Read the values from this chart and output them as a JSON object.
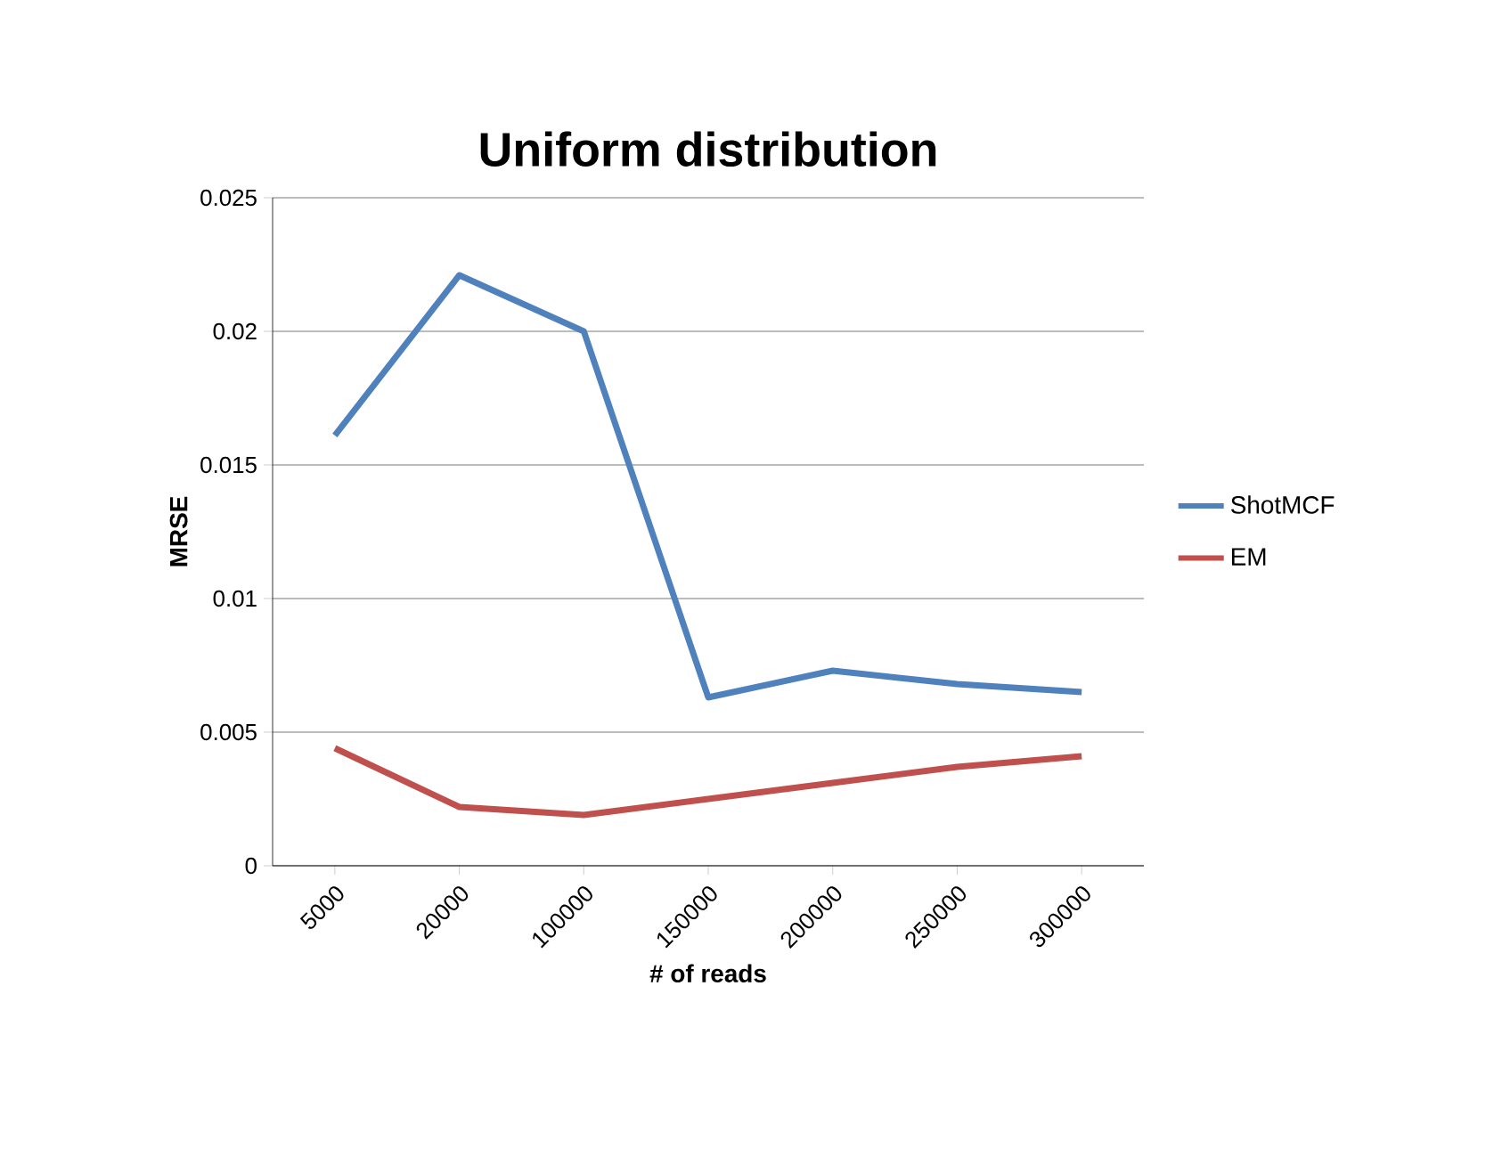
{
  "chart_data": {
    "type": "line",
    "title": "Uniform distribution",
    "xlabel": "# of reads",
    "ylabel": "MRSE",
    "categories": [
      "5000",
      "20000",
      "100000",
      "150000",
      "200000",
      "250000",
      "300000"
    ],
    "series": [
      {
        "name": "ShotMCF",
        "color": "#4f81bd",
        "values": [
          0.0161,
          0.0221,
          0.02,
          0.0063,
          0.0073,
          0.0068,
          0.0065
        ]
      },
      {
        "name": "EM",
        "color": "#c0504d",
        "values": [
          0.0044,
          0.0022,
          0.0019,
          0.0025,
          0.0031,
          0.0037,
          0.0041
        ]
      }
    ],
    "ylim": [
      0,
      0.025
    ],
    "yticks": [
      0,
      0.005,
      0.01,
      0.015,
      0.02,
      0.025
    ],
    "grid": "y",
    "legend": "right",
    "marker": "none",
    "line_style": "solid"
  }
}
